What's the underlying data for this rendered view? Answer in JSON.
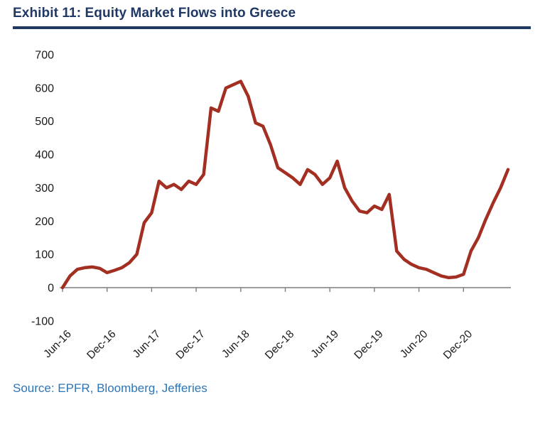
{
  "header": {
    "title": "Exhibit 11: Equity Market Flows into Greece"
  },
  "footer": {
    "source": "Source: EPFR, Bloomberg, Jefferies"
  },
  "colors": {
    "title": "#1F3864",
    "rule": "#1F3864",
    "line": "#A32E22",
    "axis": "#7F7F7F",
    "tick_label": "#1A1A1A",
    "source": "#2E75B6"
  },
  "chart_data": {
    "type": "line",
    "title": "Exhibit 11: Equity Market Flows into Greece",
    "x_start": "Jun-16",
    "x_interval": "monthly",
    "x_tick_labels": [
      "Jun-16",
      "Dec-16",
      "Jun-17",
      "Dec-17",
      "Jun-18",
      "Dec-18",
      "Jun-19",
      "Dec-19",
      "Jun-20",
      "Dec-20"
    ],
    "x_tick_indices": [
      0,
      6,
      12,
      18,
      24,
      30,
      36,
      42,
      48,
      54
    ],
    "y_ticks": [
      700,
      600,
      500,
      400,
      300,
      200,
      100,
      0,
      -100
    ],
    "ylim": [
      -100,
      700
    ],
    "grid": false,
    "legend": false,
    "series": [
      {
        "name": "Equity market flows into Greece",
        "values": [
          0,
          35,
          55,
          60,
          62,
          58,
          45,
          52,
          60,
          75,
          100,
          195,
          225,
          320,
          300,
          310,
          295,
          320,
          310,
          340,
          540,
          530,
          600,
          610,
          620,
          575,
          495,
          485,
          430,
          360,
          345,
          330,
          310,
          355,
          340,
          310,
          330,
          380,
          300,
          260,
          230,
          225,
          245,
          235,
          280,
          110,
          85,
          70,
          60,
          55,
          45,
          35,
          30,
          32,
          40,
          110,
          150,
          205,
          255,
          300,
          355
        ]
      }
    ]
  }
}
